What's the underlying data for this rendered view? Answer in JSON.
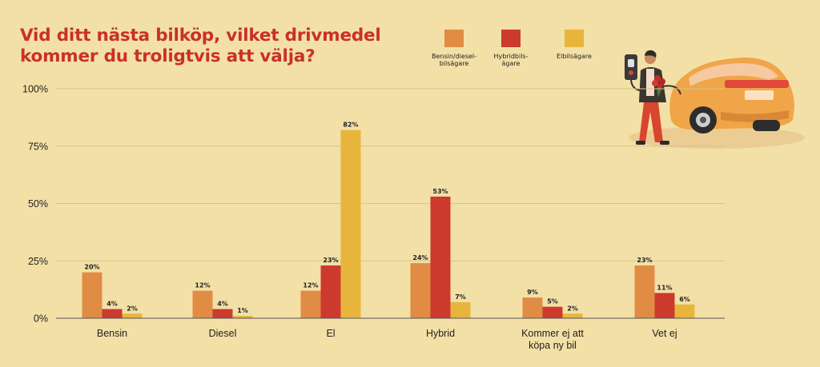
{
  "title_lines": [
    "Vid ditt nästa bilköp, vilket drivmedel",
    "kommer du troligtvis att välja?"
  ],
  "colors": {
    "background": "#f3e0a6",
    "title": "#c9302a",
    "gridline": "#d8c48c",
    "axis": "#555555"
  },
  "illustration": "person-with-flowers-and-electric-car-charging",
  "chart_data": {
    "type": "bar",
    "categories": [
      [
        "Bensin"
      ],
      [
        "Diesel"
      ],
      [
        "El"
      ],
      [
        "Hybrid"
      ],
      [
        "Kommer ej att",
        "köpa ny bil"
      ],
      [
        "Vet ej"
      ]
    ],
    "series": [
      {
        "name": "Bensin/diesel-bilsägare",
        "legend_lines": [
          "Bensin/diesel-",
          "bilsägare"
        ],
        "color": "#e08c45",
        "values": [
          20,
          12,
          12,
          24,
          9,
          23
        ],
        "labels": [
          "20%",
          "12%",
          "12%",
          "24%",
          "9%",
          "23%"
        ]
      },
      {
        "name": "Hybridbilsägare",
        "legend_lines": [
          "Hybridbils-",
          "ägare"
        ],
        "color": "#cc3a2e",
        "values": [
          4,
          4,
          23,
          53,
          5,
          11
        ],
        "labels": [
          "4%",
          "4%",
          "23%",
          "53%",
          "5%",
          "11%"
        ]
      },
      {
        "name": "Elbilsägare",
        "legend_lines": [
          "Elbilsägare"
        ],
        "color": "#e8b53c",
        "values": [
          2,
          1,
          82,
          7,
          2,
          6
        ],
        "labels": [
          "2%",
          "1%",
          "82%",
          "7%",
          "2%",
          "6%"
        ]
      }
    ],
    "yticks": [
      {
        "value": 0,
        "label": "0%"
      },
      {
        "value": 25,
        "label": "25%"
      },
      {
        "value": 50,
        "label": "50%"
      },
      {
        "value": 75,
        "label": "75%"
      },
      {
        "value": 100,
        "label": "100%"
      }
    ],
    "ylim": [
      0,
      100
    ],
    "grid": true,
    "legend_position": "top-right"
  }
}
